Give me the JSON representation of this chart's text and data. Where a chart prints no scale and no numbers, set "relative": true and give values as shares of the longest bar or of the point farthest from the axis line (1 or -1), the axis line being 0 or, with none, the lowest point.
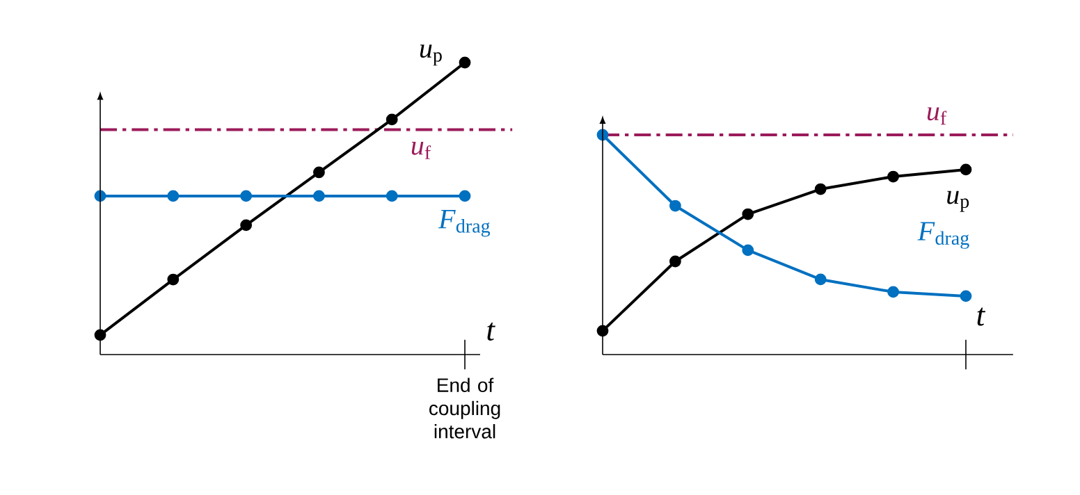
{
  "chart_data": [
    {
      "type": "line",
      "relative": true,
      "marker": "circle",
      "xlabel": "t",
      "categories": [
        null,
        null,
        null,
        null,
        null,
        null
      ],
      "annotations": [
        "End of coupling interval"
      ],
      "series": [
        {
          "name": "*u*$_{p}$",
          "color": "#000000",
          "values": [
            0.067,
            0.257,
            0.443,
            0.624,
            0.805,
            1
          ]
        },
        {
          "name": "*F*$_{drag}$",
          "color": "#0070c0",
          "values": [
            0.543,
            0.543,
            0.543,
            0.543,
            0.543,
            0.543
          ]
        }
      ],
      "ref_lines": [
        {
          "axis": "y",
          "value": 0.77,
          "label": "*u*$_{f}$",
          "color": "#9b1b5a",
          "line_style": "dashdot"
        }
      ]
    },
    {
      "type": "line",
      "relative": true,
      "marker": "circle",
      "xlabel": "t",
      "categories": [
        null,
        null,
        null,
        null,
        null,
        null
      ],
      "series": [
        {
          "name": "*u*$_{p}$",
          "color": "#000000",
          "values": [
            0.108,
            0.424,
            0.639,
            0.753,
            0.81,
            0.842
          ]
        },
        {
          "name": "*F*$_{drag}$",
          "color": "#0070c0",
          "values": [
            1,
            0.677,
            0.475,
            0.342,
            0.285,
            0.266
          ]
        }
      ],
      "ref_lines": [
        {
          "axis": "y",
          "value": 1.0,
          "label": "*u*$_{f}$",
          "color": "#9b1b5a",
          "line_style": "dashdot"
        }
      ]
    }
  ]
}
